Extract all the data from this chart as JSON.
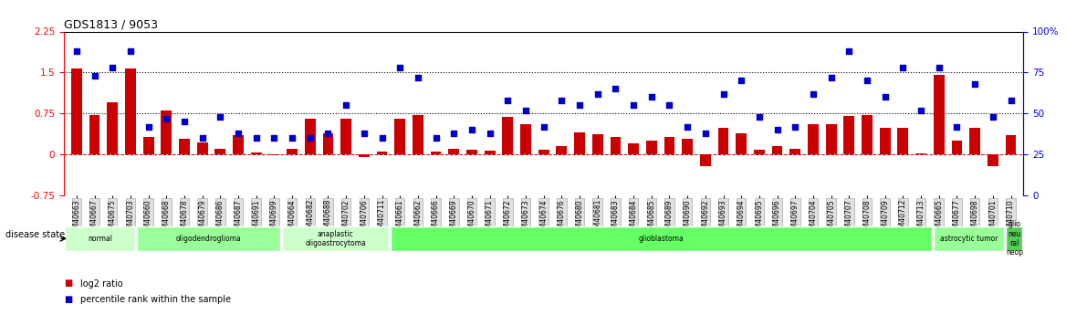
{
  "title": "GDS1813 / 9053",
  "samples": [
    "GSM40663",
    "GSM40667",
    "GSM40675",
    "GSM40703",
    "GSM40660",
    "GSM40668",
    "GSM40678",
    "GSM40679",
    "GSM40686",
    "GSM40687",
    "GSM40691",
    "GSM40699",
    "GSM40664",
    "GSM40682",
    "GSM40688",
    "GSM40702",
    "GSM40706",
    "GSM40711",
    "GSM40661",
    "GSM40662",
    "GSM40666",
    "GSM40669",
    "GSM40670",
    "GSM40671",
    "GSM40672",
    "GSM40673",
    "GSM40674",
    "GSM40676",
    "GSM40680",
    "GSM40681",
    "GSM40683",
    "GSM40684",
    "GSM40685",
    "GSM40689",
    "GSM40690",
    "GSM40692",
    "GSM40693",
    "GSM40694",
    "GSM40695",
    "GSM40696",
    "GSM40697",
    "GSM40704",
    "GSM40705",
    "GSM40707",
    "GSM40708",
    "GSM40709",
    "GSM40712",
    "GSM40713",
    "GSM40665",
    "GSM40677",
    "GSM40698",
    "GSM40701",
    "GSM40710"
  ],
  "log2_ratio": [
    1.58,
    0.72,
    0.95,
    1.58,
    0.32,
    0.8,
    0.28,
    0.22,
    0.1,
    0.35,
    0.03,
    -0.02,
    0.1,
    0.65,
    0.38,
    0.65,
    -0.05,
    0.05,
    0.65,
    0.72,
    0.05,
    0.1,
    0.08,
    0.06,
    0.68,
    0.55,
    0.08,
    0.15,
    0.4,
    0.37,
    0.32,
    0.2,
    0.25,
    0.32,
    0.28,
    -0.22,
    0.48,
    0.38,
    0.08,
    0.15,
    0.1,
    0.55,
    0.55,
    0.7,
    0.72,
    0.48,
    0.48,
    0.02,
    1.45,
    0.25,
    0.48,
    -0.22,
    0.35
  ],
  "pct_rank": [
    88,
    73,
    78,
    88,
    42,
    47,
    45,
    35,
    48,
    38,
    35,
    35,
    35,
    35,
    38,
    55,
    38,
    35,
    78,
    72,
    35,
    38,
    40,
    38,
    58,
    52,
    42,
    58,
    55,
    62,
    65,
    55,
    60,
    55,
    42,
    38,
    62,
    70,
    48,
    40,
    42,
    62,
    72,
    88,
    70,
    60,
    78,
    52,
    78,
    42,
    68,
    48,
    58
  ],
  "disease_groups": [
    {
      "label": "normal",
      "start": 0,
      "end": 4,
      "color": "#ccffcc"
    },
    {
      "label": "oligodendroglioma",
      "start": 4,
      "end": 12,
      "color": "#99ff99"
    },
    {
      "label": "anaplastic\noligoastrocytoma",
      "start": 12,
      "end": 18,
      "color": "#ccffcc"
    },
    {
      "label": "glioblastoma",
      "start": 18,
      "end": 48,
      "color": "#66ff66"
    },
    {
      "label": "astrocytic tumor",
      "start": 48,
      "end": 52,
      "color": "#99ff99"
    },
    {
      "label": "glio\nneu\nral\nneop",
      "start": 52,
      "end": 53,
      "color": "#55cc55"
    }
  ],
  "bar_color": "#cc0000",
  "dot_color": "#0000cc",
  "left_ylim": [
    -0.75,
    2.25
  ],
  "right_ylim": [
    0,
    100
  ],
  "left_yticks": [
    -0.75,
    0,
    0.75,
    1.5,
    2.25
  ],
  "right_yticks": [
    0,
    25,
    50,
    75,
    100
  ],
  "hline_values": [
    0.75,
    1.5
  ],
  "zero_line": 0
}
